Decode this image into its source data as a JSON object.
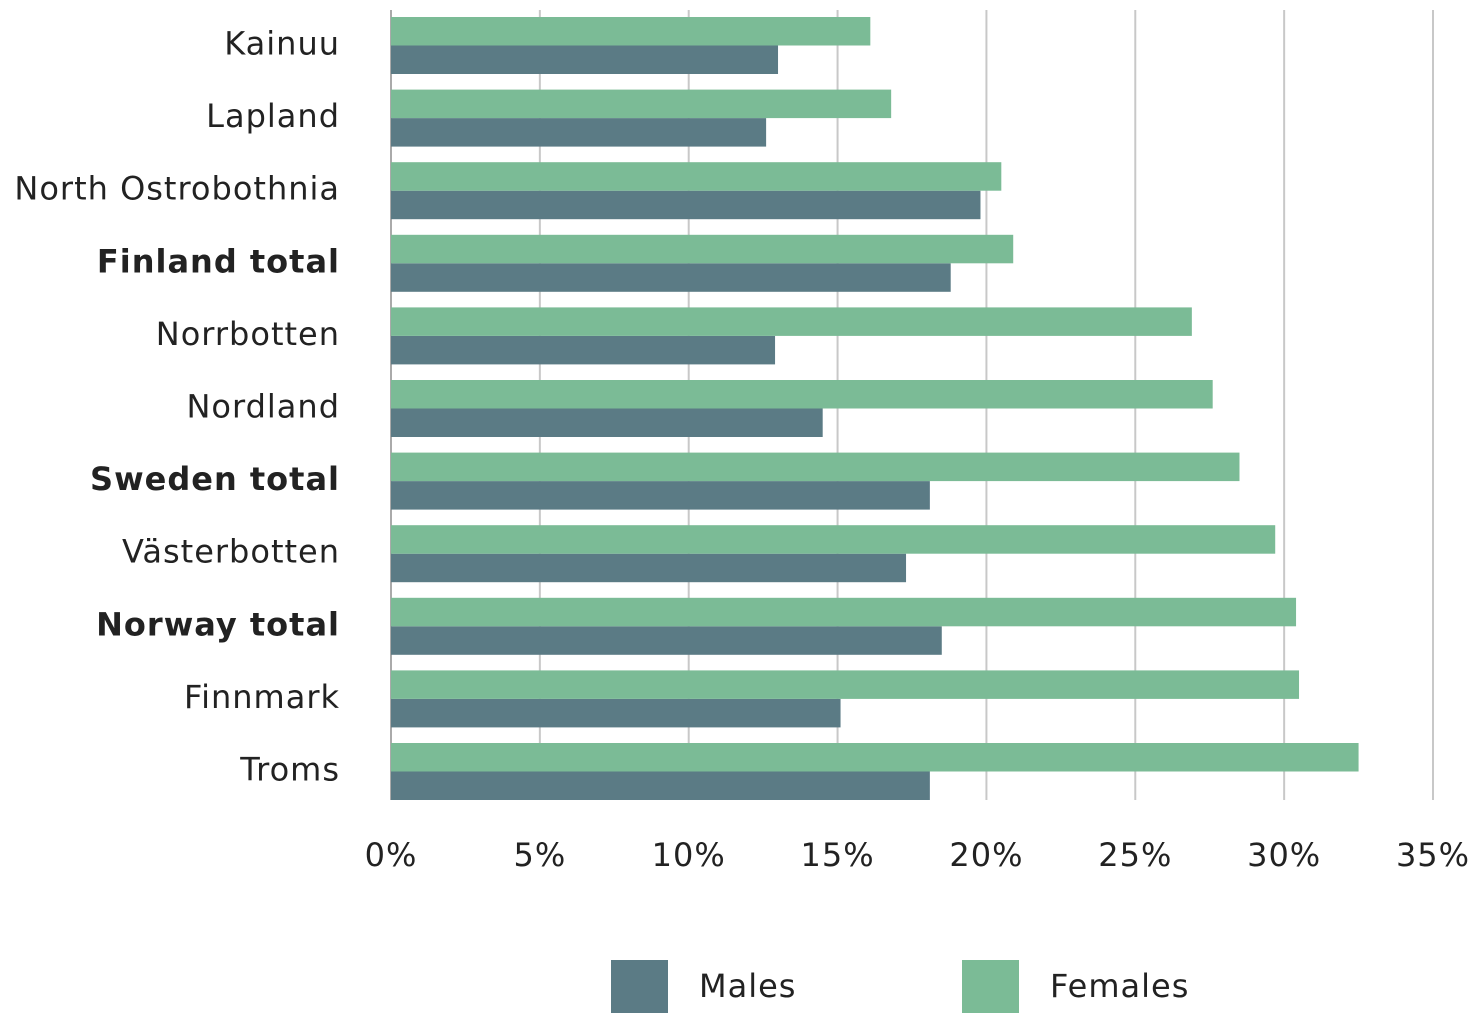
{
  "chart_data": {
    "type": "hbar",
    "categories": [
      "Kainuu",
      "Lapland",
      "North Ostrobothnia",
      "Finland total",
      "Norrbotten",
      "Nordland",
      "Sweden total",
      "Västerbotten",
      "Norway total",
      "Finnmark",
      "Troms"
    ],
    "bold_categories": [
      3,
      6,
      8
    ],
    "series": [
      {
        "name": "Males",
        "color": "#5b7b85",
        "values": [
          13.0,
          12.6,
          19.8,
          18.8,
          12.9,
          14.5,
          18.1,
          17.3,
          18.5,
          15.1,
          18.1
        ]
      },
      {
        "name": "Females",
        "color": "#7bbb96",
        "values": [
          16.1,
          16.8,
          20.5,
          20.9,
          26.9,
          27.6,
          28.5,
          29.7,
          30.4,
          30.5,
          32.5
        ]
      }
    ],
    "xlim": [
      0,
      35
    ],
    "xticks": [
      {
        "value": 0,
        "label": "0%"
      },
      {
        "value": 5,
        "label": "5%"
      },
      {
        "value": 10,
        "label": "10%"
      },
      {
        "value": 15,
        "label": "15%"
      },
      {
        "value": 20,
        "label": "20%"
      },
      {
        "value": 25,
        "label": "25%"
      },
      {
        "value": 30,
        "label": "30%"
      },
      {
        "value": 35,
        "label": "35%"
      }
    ],
    "grid": true,
    "legend": "bottom"
  }
}
